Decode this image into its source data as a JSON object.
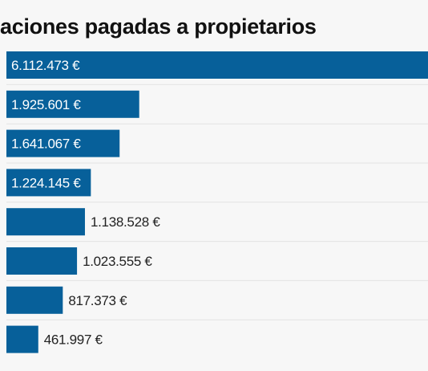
{
  "title": "aciones pagadas a propietarios",
  "colors": {
    "bar": "#07609a",
    "label_inside": "#ffffff",
    "label_outside": "#222222",
    "separator": "#e3e3e3",
    "background": "#f7f7f7"
  },
  "chart_data": {
    "type": "bar",
    "orientation": "horizontal",
    "title": "aciones pagadas a propietarios",
    "xlabel": "",
    "ylabel": "",
    "values": [
      6112473,
      1925601,
      1641067,
      1224145,
      1138528,
      1023555,
      817373,
      461997
    ],
    "value_labels": [
      "6.112.473 €",
      "1.925.601 €",
      "1.641.067 €",
      "1.224.145 €",
      "1.138.528 €",
      "1.023.555 €",
      "817.373 €",
      "461.997 €"
    ],
    "grid": false,
    "legend": "none"
  }
}
